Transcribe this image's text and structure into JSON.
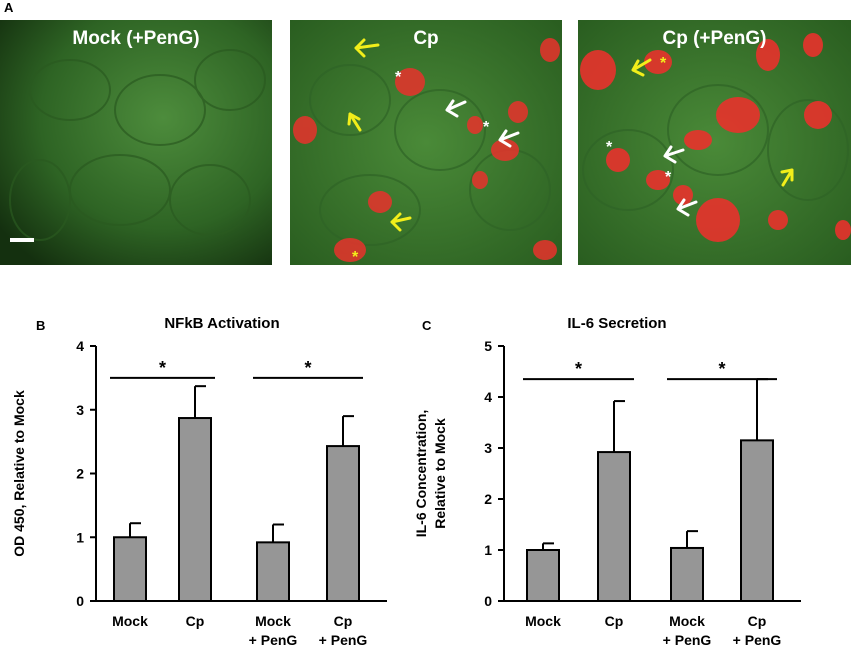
{
  "panel_labels": {
    "a": "A",
    "b": "B",
    "c": "C"
  },
  "micrographs": [
    {
      "title": "Mock (+PenG)"
    },
    {
      "title": "Cp"
    },
    {
      "title": "Cp (+PenG)"
    }
  ],
  "colors": {
    "cytoplasm_green": "#3f7a2e",
    "inclusion_red": "#e8322c",
    "arrow_yellow": "#f2ee1a",
    "arrow_white": "#ffffff",
    "bar_fill": "#969696"
  },
  "chart_data": [
    {
      "type": "bar",
      "title": "NFkB Activation",
      "ylabel": "OD 450, Relative to Mock",
      "categories": [
        [
          "Mock"
        ],
        [
          "Cp"
        ],
        [
          "Mock",
          "+ PenG"
        ],
        [
          "Cp",
          "+ PenG"
        ]
      ],
      "values": [
        1.0,
        2.87,
        0.92,
        2.43
      ],
      "errors": [
        0.22,
        0.5,
        0.28,
        0.47
      ],
      "ylim": [
        0,
        4
      ],
      "yticks": [
        0,
        1,
        2,
        3,
        4
      ],
      "significance": [
        {
          "from": 0,
          "to": 1,
          "label": "*",
          "y": 3.5
        },
        {
          "from": 2,
          "to": 3,
          "label": "*",
          "y": 3.5
        }
      ]
    },
    {
      "type": "bar",
      "title": "IL-6 Secretion",
      "ylabel": "IL-6 Concentration,\nRelative to Mock",
      "categories": [
        [
          "Mock"
        ],
        [
          "Cp"
        ],
        [
          "Mock",
          "+ PenG"
        ],
        [
          "Cp",
          "+ PenG"
        ]
      ],
      "values": [
        1.0,
        2.92,
        1.04,
        3.15
      ],
      "errors": [
        0.13,
        1.0,
        0.33,
        1.2
      ],
      "ylim": [
        0,
        5
      ],
      "yticks": [
        0,
        1,
        2,
        3,
        4,
        5
      ],
      "significance": [
        {
          "from": 0,
          "to": 1,
          "label": "*",
          "y": 4.35
        },
        {
          "from": 2,
          "to": 3,
          "label": "*",
          "y": 4.35
        }
      ]
    }
  ]
}
